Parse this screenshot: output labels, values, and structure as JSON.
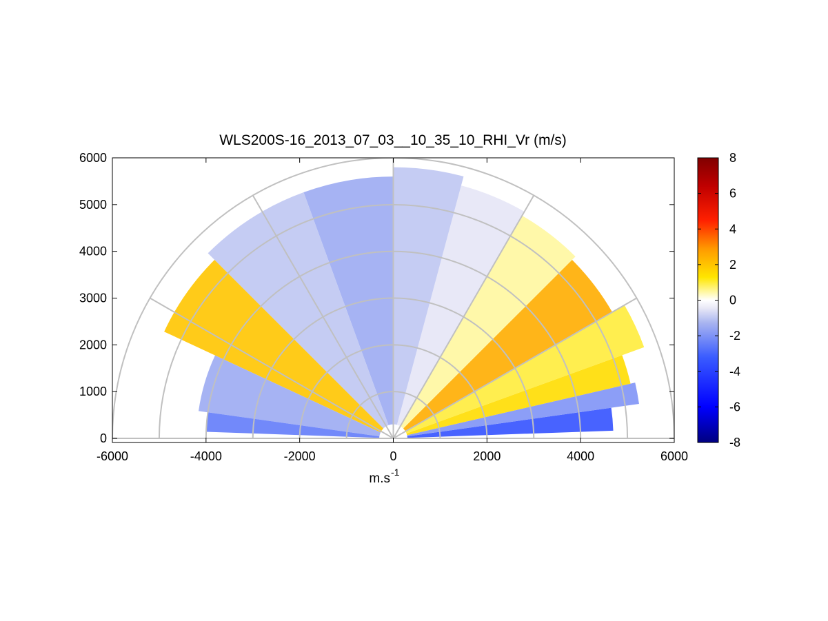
{
  "chart_data": {
    "type": "heatmap",
    "subtype": "polar-rhi-scan",
    "title": "WLS200S-16_2013_07_03__10_35_10_RHI_Vr (m/s)",
    "xlabel": "m.s",
    "xlabel_superscript": "-1",
    "ylabel": "",
    "xlim": [
      -6000,
      6000
    ],
    "ylim": [
      0,
      6000
    ],
    "x_ticks": [
      -6000,
      -4000,
      -2000,
      0,
      2000,
      4000,
      6000
    ],
    "y_ticks": [
      0,
      1000,
      2000,
      3000,
      4000,
      5000,
      6000
    ],
    "range_rings": [
      1000,
      2000,
      3000,
      4000,
      5000,
      6000
    ],
    "radial_lines_deg": [
      30,
      60,
      90,
      120,
      150
    ],
    "colorbar": {
      "min": -8,
      "max": 8,
      "ticks": [
        -8,
        -6,
        -4,
        -2,
        0,
        2,
        4,
        6,
        8
      ],
      "colormap": "blue-white-yellow-red"
    },
    "sectors": [
      {
        "elev_deg": [
          2,
          8
        ],
        "range_m": [
          300,
          4700
        ],
        "vr": -3.5
      },
      {
        "elev_deg": [
          8,
          13
        ],
        "range_m": [
          300,
          5300
        ],
        "vr": -2.0
      },
      {
        "elev_deg": [
          13,
          20
        ],
        "range_m": [
          300,
          5200
        ],
        "vr": 1.5
      },
      {
        "elev_deg": [
          20,
          30
        ],
        "range_m": [
          300,
          5700
        ],
        "vr": 1.0
      },
      {
        "elev_deg": [
          30,
          45
        ],
        "range_m": [
          300,
          5400
        ],
        "vr": 2.5
      },
      {
        "elev_deg": [
          45,
          60
        ],
        "range_m": [
          300,
          5500
        ],
        "vr": 0.5
      },
      {
        "elev_deg": [
          60,
          75
        ],
        "range_m": [
          300,
          5600
        ],
        "vr": -0.5
      },
      {
        "elev_deg": [
          75,
          90
        ],
        "range_m": [
          300,
          5800
        ],
        "vr": -1.0
      },
      {
        "elev_deg": [
          90,
          110
        ],
        "range_m": [
          300,
          5600
        ],
        "vr": -1.5
      },
      {
        "elev_deg": [
          110,
          135
        ],
        "range_m": [
          300,
          5600
        ],
        "vr": -1.0
      },
      {
        "elev_deg": [
          135,
          155
        ],
        "range_m": [
          300,
          5400
        ],
        "vr": 2.0
      },
      {
        "elev_deg": [
          155,
          172
        ],
        "range_m": [
          300,
          4200
        ],
        "vr": -1.5
      },
      {
        "elev_deg": [
          172,
          178
        ],
        "range_m": [
          300,
          4000
        ],
        "vr": -2.5
      }
    ]
  }
}
